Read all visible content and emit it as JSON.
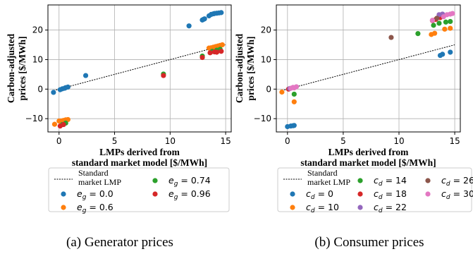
{
  "chart_data": [
    {
      "type": "scatter",
      "caption": "(a) Generator prices",
      "xlabel": [
        "LMPs derived from",
        "standard market model [$/MWh]"
      ],
      "ylabel": [
        "Carbon-adjusted",
        "prices [$/MWh]"
      ],
      "xlim": [
        -1,
        15.5
      ],
      "ylim": [
        -14.5,
        28.5
      ],
      "xticks": [
        0,
        5,
        10,
        15
      ],
      "yticks": [
        -10,
        0,
        10,
        20
      ],
      "grid": true,
      "reference_line": {
        "name": "Standard market LMP",
        "label_lines": [
          "Standard",
          "market LMP"
        ],
        "x": [
          -0.5,
          15
        ],
        "y": [
          -0.5,
          15
        ]
      },
      "legend_columns": 2,
      "series": [
        {
          "name": "e_g = 0.0",
          "var": "e",
          "sub": "g",
          "val": "0.0",
          "color": "#1f77b4",
          "x": [
            -0.5,
            0.1,
            0.3,
            0.5,
            0.6,
            0.8,
            2.4,
            11.7,
            12.9,
            13.0,
            13.1,
            13.5,
            13.7,
            13.9,
            14.0,
            14.2,
            14.4,
            14.6
          ],
          "y": [
            -1.1,
            -0.2,
            0.1,
            0.3,
            0.5,
            0.7,
            4.6,
            21.4,
            23.4,
            23.6,
            23.8,
            24.8,
            25.3,
            25.5,
            25.6,
            25.7,
            25.8,
            25.9
          ]
        },
        {
          "name": "e_g = 0.6",
          "var": "e",
          "sub": "g",
          "val": "0.6",
          "color": "#ff7f0e",
          "x": [
            -0.4,
            0.0,
            0.2,
            0.4,
            0.6,
            0.8,
            13.5,
            13.7,
            13.9,
            14.1,
            14.3,
            14.5,
            14.7
          ],
          "y": [
            -11.9,
            -10.8,
            -10.8,
            -10.6,
            -10.4,
            -10.3,
            13.9,
            14.0,
            14.2,
            14.4,
            14.6,
            14.8,
            15.0
          ]
        },
        {
          "name": "e_g = 0.74",
          "var": "e",
          "sub": "g",
          "val": "0.74",
          "color": "#2ca02c",
          "x": [
            0.3,
            0.6,
            9.4,
            12.9,
            13.8,
            14.2,
            14.5
          ],
          "y": [
            -12.0,
            -11.5,
            5.1,
            11.2,
            12.8,
            13.2,
            13.5
          ]
        },
        {
          "name": "e_g = 0.96",
          "var": "e",
          "sub": "g",
          "val": "0.96",
          "color": "#d62728",
          "x": [
            0.1,
            0.4,
            9.4,
            12.9,
            13.6,
            14.0,
            14.2,
            14.6
          ],
          "y": [
            -12.5,
            -12.0,
            4.6,
            10.7,
            12.3,
            12.6,
            12.5,
            12.8
          ]
        }
      ]
    },
    {
      "type": "scatter",
      "caption": "(b) Consumer prices",
      "xlabel": [
        "LMPs derived from",
        "standard market model [$/MWh]"
      ],
      "ylabel": [
        "Carbon-adjusted",
        "prices [$/MWh]"
      ],
      "xlim": [
        -1,
        15.5
      ],
      "ylim": [
        -14.5,
        28.5
      ],
      "xticks": [
        0,
        5,
        10,
        15
      ],
      "yticks": [
        -10,
        0,
        10,
        20
      ],
      "grid": true,
      "reference_line": {
        "name": "Standard market LMP",
        "label_lines": [
          "Standard",
          "market LMP"
        ],
        "x": [
          -0.5,
          15
        ],
        "y": [
          -0.5,
          15
        ]
      },
      "legend_columns": 3,
      "series": [
        {
          "name": "c_d = 0",
          "var": "c",
          "sub": "d",
          "val": "0",
          "color": "#1f77b4",
          "x": [
            0.0,
            0.3,
            0.5,
            0.6,
            13.7,
            13.9,
            14.6
          ],
          "y": [
            -12.7,
            -12.5,
            -12.4,
            -12.3,
            11.4,
            11.8,
            12.5
          ]
        },
        {
          "name": "c_d = 10",
          "var": "c",
          "sub": "d",
          "val": "10",
          "color": "#ff7f0e",
          "x": [
            -0.5,
            0.6,
            12.9,
            13.2,
            14.1,
            14.6
          ],
          "y": [
            -1.0,
            -4.3,
            18.5,
            18.9,
            20.3,
            20.6
          ]
        },
        {
          "name": "c_d = 14",
          "var": "c",
          "sub": "d",
          "val": "14",
          "color": "#2ca02c",
          "x": [
            0.6,
            11.7,
            13.1,
            13.6,
            14.2,
            14.6
          ],
          "y": [
            -1.7,
            18.8,
            21.6,
            22.3,
            22.7,
            22.9
          ]
        },
        {
          "name": "c_d = 18",
          "var": "c",
          "sub": "d",
          "val": "18",
          "color": "#d62728",
          "x": [
            0.1,
            13.0,
            13.3,
            13.7
          ],
          "y": [
            0.0,
            23.2,
            23.6,
            24.2
          ]
        },
        {
          "name": "c_d = 22",
          "var": "c",
          "sub": "d",
          "val": "22",
          "color": "#9467bd",
          "x": [
            0.2,
            13.6,
            13.9
          ],
          "y": [
            0.2,
            25.2,
            25.4
          ]
        },
        {
          "name": "c_d = 26",
          "var": "c",
          "sub": "d",
          "val": "26",
          "color": "#8c564b",
          "x": [
            9.3,
            13.4
          ],
          "y": [
            17.5,
            24.0
          ]
        },
        {
          "name": "c_d = 30",
          "var": "c",
          "sub": "d",
          "val": "30",
          "color": "#e377c2",
          "x": [
            0.3,
            0.5,
            0.6,
            0.8,
            13.0,
            14.0,
            14.3,
            14.6,
            14.8
          ],
          "y": [
            0.3,
            0.6,
            0.4,
            0.8,
            23.3,
            24.5,
            25.2,
            25.4,
            25.6
          ]
        }
      ]
    }
  ]
}
